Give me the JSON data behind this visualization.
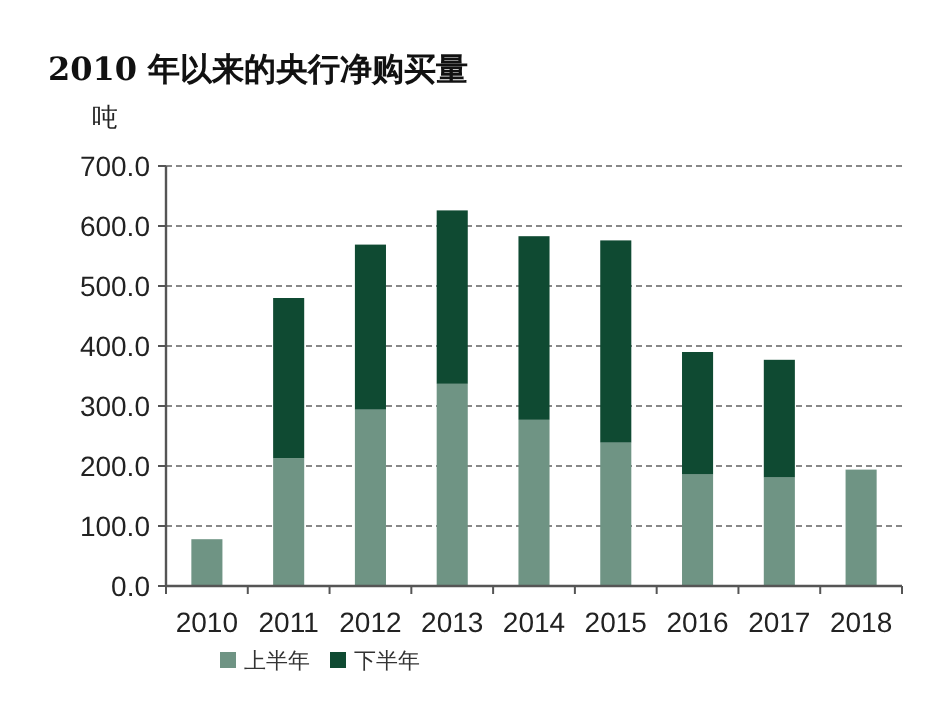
{
  "chart_data": {
    "type": "bar",
    "stacked": true,
    "title": "2010 年以来的央行净购买量",
    "ylabel": "吨",
    "categories": [
      "2010",
      "2011",
      "2012",
      "2013",
      "2014",
      "2015",
      "2016",
      "2017",
      "2018"
    ],
    "series": [
      {
        "name": "上半年",
        "color": "#6f9484",
        "values": [
          78,
          213,
          294,
          337,
          277,
          239,
          186,
          181,
          194
        ]
      },
      {
        "name": "下半年",
        "color": "#0f4a32",
        "values": [
          null,
          267,
          275,
          289,
          306,
          337,
          204,
          196,
          null
        ]
      }
    ],
    "ylim": [
      0,
      700
    ],
    "yticks": [
      {
        "value": 0,
        "label": "0.0"
      },
      {
        "value": 100,
        "label": "100.0"
      },
      {
        "value": 200,
        "label": "200.0"
      },
      {
        "value": 300,
        "label": "300.0"
      },
      {
        "value": 400,
        "label": "400.0"
      },
      {
        "value": 500,
        "label": "500.0"
      },
      {
        "value": 600,
        "label": "600.0"
      },
      {
        "value": 700,
        "label": "700.0"
      }
    ],
    "grid": "y",
    "legend": "bottom left"
  }
}
